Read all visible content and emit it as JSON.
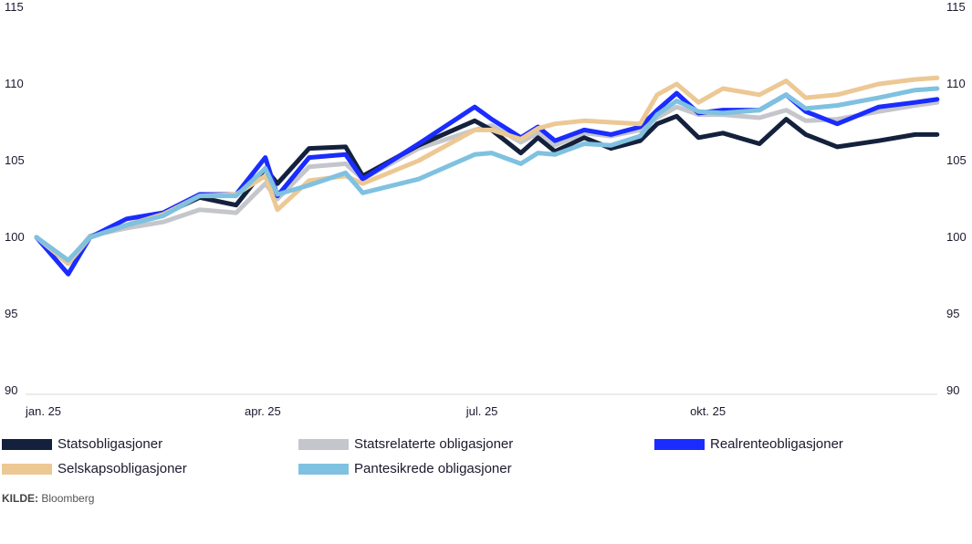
{
  "chart_data": {
    "type": "line",
    "title": "",
    "xlabel": "",
    "ylabel": "",
    "ylim": [
      90,
      115
    ],
    "yticks": [
      90,
      95,
      100,
      105,
      110,
      115
    ],
    "y_axis_sides": [
      "left",
      "right"
    ],
    "grid": false,
    "legend_placement": "bottom",
    "xticks": [
      {
        "date": "2025-01-01",
        "label": "jan. 25"
      },
      {
        "date": "2025-04-01",
        "label": "apr. 25"
      },
      {
        "date": "2025-07-01",
        "label": "jul. 25"
      },
      {
        "date": "2025-10-01",
        "label": "okt. 25"
      }
    ],
    "x": [
      "2025-01-01",
      "2025-01-14",
      "2025-01-23",
      "2025-02-07",
      "2025-02-22",
      "2025-03-09",
      "2025-03-24",
      "2025-04-05",
      "2025-04-10",
      "2025-04-23",
      "2025-05-08",
      "2025-05-15",
      "2025-06-07",
      "2025-06-30",
      "2025-07-07",
      "2025-07-19",
      "2025-07-26",
      "2025-08-02",
      "2025-08-14",
      "2025-08-25",
      "2025-09-06",
      "2025-09-13",
      "2025-09-21",
      "2025-09-30",
      "2025-10-10",
      "2025-10-25",
      "2025-11-05",
      "2025-11-13",
      "2025-11-26",
      "2025-12-13",
      "2025-12-28",
      "2026-01-06"
    ],
    "series": [
      {
        "name": "Statsrelaterte obligasjoner",
        "color": "#c4c6cb",
        "values": [
          100,
          98.4,
          100.1,
          100.6,
          101.0,
          101.8,
          101.6,
          103.5,
          102.5,
          104.6,
          104.8,
          103.8,
          105.8,
          107.0,
          107.3,
          106.2,
          106.8,
          106.0,
          106.8,
          106.6,
          107.0,
          107.8,
          108.5,
          108.0,
          108.0,
          107.8,
          108.3,
          107.6,
          107.7,
          108.2,
          108.6,
          108.8
        ]
      },
      {
        "name": "Statsobligasjoner",
        "color": "#14213d",
        "values": [
          100,
          98.3,
          100.0,
          100.8,
          101.5,
          102.6,
          102.1,
          104.5,
          103.5,
          105.8,
          105.9,
          104.0,
          106.0,
          107.6,
          107.0,
          105.5,
          106.5,
          105.6,
          106.5,
          105.8,
          106.3,
          107.4,
          107.9,
          106.5,
          106.8,
          106.1,
          107.7,
          106.7,
          105.9,
          106.3,
          106.7,
          106.7
        ]
      },
      {
        "name": "Realrenteobligasjoner",
        "color": "#1a2cff",
        "values": [
          100,
          97.6,
          100.0,
          101.2,
          101.6,
          102.8,
          102.8,
          105.2,
          102.7,
          105.2,
          105.4,
          103.8,
          106.1,
          108.5,
          107.7,
          106.5,
          107.2,
          106.3,
          107.0,
          106.7,
          107.2,
          108.3,
          109.4,
          108.1,
          108.3,
          108.3,
          109.3,
          108.2,
          107.4,
          108.5,
          108.8,
          109.0
        ]
      },
      {
        "name": "Selskapsobligasjoner",
        "color": "#ecc895",
        "values": [
          100,
          98.3,
          100.0,
          100.8,
          101.5,
          102.7,
          102.8,
          104.0,
          101.8,
          103.7,
          104.0,
          103.5,
          105.0,
          107.0,
          107.0,
          106.4,
          107.1,
          107.4,
          107.6,
          107.5,
          107.4,
          109.3,
          110.0,
          108.8,
          109.7,
          109.3,
          110.2,
          109.1,
          109.3,
          110.0,
          110.3,
          110.4
        ]
      },
      {
        "name": "Pantesikrede obligasjoner",
        "color": "#7fc1e0",
        "values": [
          100,
          98.5,
          100.0,
          100.8,
          101.4,
          102.7,
          102.7,
          104.5,
          102.8,
          103.4,
          104.2,
          102.9,
          103.8,
          105.4,
          105.5,
          104.8,
          105.5,
          105.4,
          106.1,
          106.0,
          106.6,
          108.0,
          108.9,
          108.2,
          108.1,
          108.3,
          109.3,
          108.4,
          108.6,
          109.1,
          109.6,
          109.7
        ]
      }
    ]
  },
  "legend": [
    {
      "label": "Statsobligasjoner",
      "color": "#14213d"
    },
    {
      "label": "Statsrelaterte obligasjoner",
      "color": "#c4c6cb"
    },
    {
      "label": "Realrenteobligasjoner",
      "color": "#1a2cff"
    },
    {
      "label": "Selskapsobligasjoner",
      "color": "#ecc895"
    },
    {
      "label": "Pantesikrede obligasjoner",
      "color": "#7fc1e0"
    }
  ],
  "source": {
    "label": "KILDE:",
    "text": "Bloomberg"
  }
}
